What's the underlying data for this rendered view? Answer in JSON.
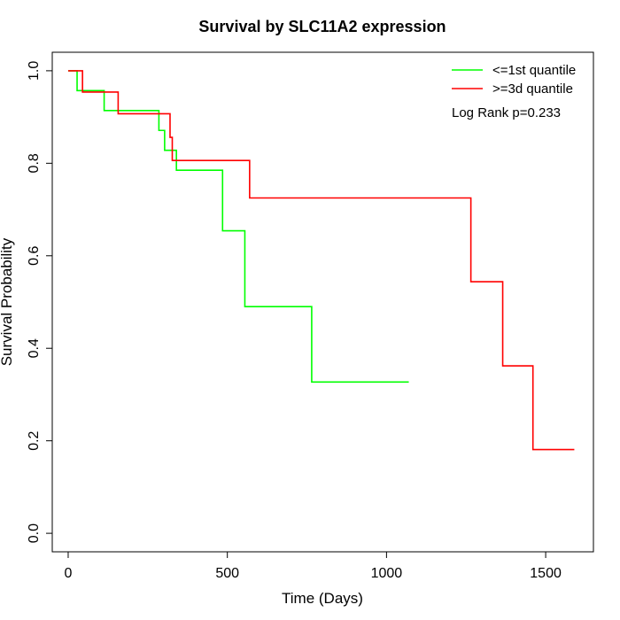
{
  "chart_data": {
    "type": "line",
    "title": "Survival by SLC11A2 expression",
    "xlabel": "Time (Days)",
    "ylabel": "Survival Probability",
    "xlim": [
      -50,
      1650
    ],
    "ylim": [
      -0.04,
      1.04
    ],
    "xticks": [
      0,
      500,
      1000,
      1500
    ],
    "yticks": [
      0.0,
      0.2,
      0.4,
      0.6,
      0.8,
      1.0
    ],
    "xtick_labels": [
      "0",
      "500",
      "1000",
      "1500"
    ],
    "ytick_labels": [
      "0.0",
      "0.2",
      "0.4",
      "0.6",
      "0.8",
      "1.0"
    ],
    "step": "post",
    "grid": false,
    "legend_position": "top-right",
    "annotation": "Log Rank p=0.233",
    "series": [
      {
        "name": "<=1st quantile",
        "color": "#00ff00",
        "x": [
          0,
          28,
          113,
          285,
          303,
          340,
          485,
          555,
          765,
          1070
        ],
        "y": [
          1.0,
          0.957,
          0.914,
          0.871,
          0.828,
          0.785,
          0.654,
          0.49,
          0.327,
          0.327
        ]
      },
      {
        "name": ">=3d quantile",
        "color": "#ff0000",
        "x": [
          0,
          45,
          157,
          320,
          327,
          570,
          1265,
          1365,
          1460,
          1590
        ],
        "y": [
          1.0,
          0.954,
          0.907,
          0.856,
          0.806,
          0.725,
          0.544,
          0.362,
          0.181,
          0.181
        ]
      }
    ]
  }
}
